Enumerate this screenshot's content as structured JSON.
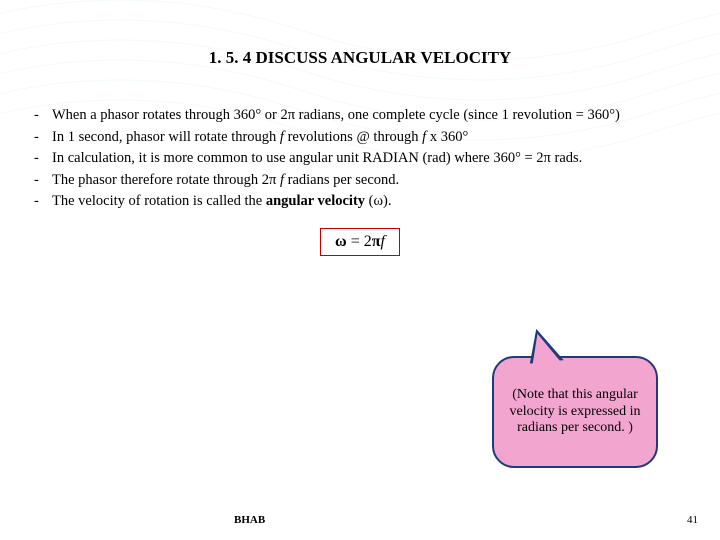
{
  "title": "1. 5. 4 DISCUSS ANGULAR VELOCITY",
  "bullets": [
    {
      "html": "When a phasor rotates through 360° or 2π radians, one complete cycle (since 1 revolution = 360°)"
    },
    {
      "html": "In 1 second, phasor will rotate through <span class='italic-f'>f</span> revolutions @ through  <span class='italic-f'>f</span>  x 360°"
    },
    {
      "html": "In calculation, it is more common to use angular unit RADIAN (rad) where 360° = 2π rads."
    },
    {
      "html": "The phasor  therefore rotate through 2π <span class='italic-f'>f</span> radians per second."
    },
    {
      "html": "The velocity of rotation is called the <b>angular velocity</b> (ω)."
    }
  ],
  "formula": {
    "omega": "ω",
    "eq": " = 2",
    "pi": "π",
    "f": "f"
  },
  "callout": "(Note that this angular velocity is expressed in radians per second. )",
  "footer": {
    "author": "BHAB",
    "page": "41"
  },
  "colors": {
    "formula_border": "#c00000",
    "callout_fill": "#f2a5cf",
    "callout_border": "#1f3a7a",
    "watermark": "#7fd4d4"
  }
}
